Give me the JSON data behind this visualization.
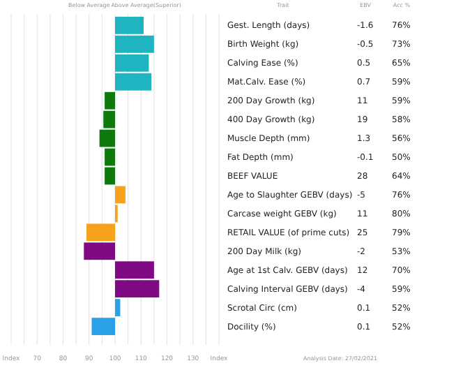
{
  "chart_data": {
    "type": "bar",
    "orientation": "horizontal",
    "grid": "x",
    "categories": [
      "Gest. Length (days)",
      "Birth Weight (kg)",
      "Calving Ease (%)",
      "Mat.Calv. Ease (%)",
      "200 Day Growth (kg)",
      "400 Day Growth (kg)",
      "Muscle Depth (mm)",
      "Fat Depth (mm)",
      "BEEF VALUE",
      "Age to Slaughter GEBV (days)",
      "Carcase weight GEBV (kg)",
      "RETAIL VALUE (of prime cuts)",
      "200 Day Milk (kg)",
      "Age at 1st Calv. GEBV (days)",
      "Calving Interval GEBV (days)",
      "Scrotal Circ (cm)",
      "Docility (%)"
    ],
    "base": [
      100,
      100,
      100,
      100,
      100,
      100,
      100,
      100,
      100,
      100,
      100,
      100,
      100,
      100,
      100,
      100,
      100
    ],
    "values": [
      11,
      15,
      13,
      14,
      -4,
      -4.5,
      -6,
      -4,
      -4,
      4,
      1,
      -11,
      -12,
      15,
      17,
      2,
      -9
    ],
    "colors": [
      "#1fb5c0",
      "#1fb5c0",
      "#1fb5c0",
      "#1fb5c0",
      "#0e7a0e",
      "#0e7a0e",
      "#0e7a0e",
      "#0e7a0e",
      "#0e7a0e",
      "#f7a21b",
      "#f7a21b",
      "#f7a21b",
      "#7f0a84",
      "#7f0a84",
      "#7f0a84",
      "#2aa0e8",
      "#2aa0e8"
    ],
    "xlim": [
      60,
      140
    ],
    "xticks": [
      {
        "value": 60,
        "label": "Index"
      },
      {
        "value": 65,
        "label": null
      },
      70,
      {
        "value": 75,
        "label": null
      },
      80,
      {
        "value": 85,
        "label": null
      },
      90,
      {
        "value": 95,
        "label": null
      },
      100,
      {
        "value": 105,
        "label": null
      },
      110,
      {
        "value": 115,
        "label": null
      },
      120,
      {
        "value": 125,
        "label": null
      },
      130,
      {
        "value": 135,
        "label": null
      },
      {
        "value": 140,
        "label": "Index"
      }
    ],
    "annotations": [
      "Below Average",
      "Above Average(Superior)",
      "Trait",
      "EBV",
      "Acc %",
      "Analysis Date: 27/02/2021",
      "-1.6",
      "76%",
      "-0.5",
      "73%",
      "0.5",
      "65%",
      "0.7",
      "59%",
      "11",
      "59%",
      "19",
      "58%",
      "1.3",
      "56%",
      "-0.1",
      "50%",
      "28",
      "64%",
      "-5",
      "76%",
      "11",
      "80%",
      "25",
      "79%",
      "-2",
      "53%",
      "12",
      "70%",
      "-4",
      "59%",
      "0.1",
      "52%",
      "0.1",
      "52%"
    ]
  }
}
